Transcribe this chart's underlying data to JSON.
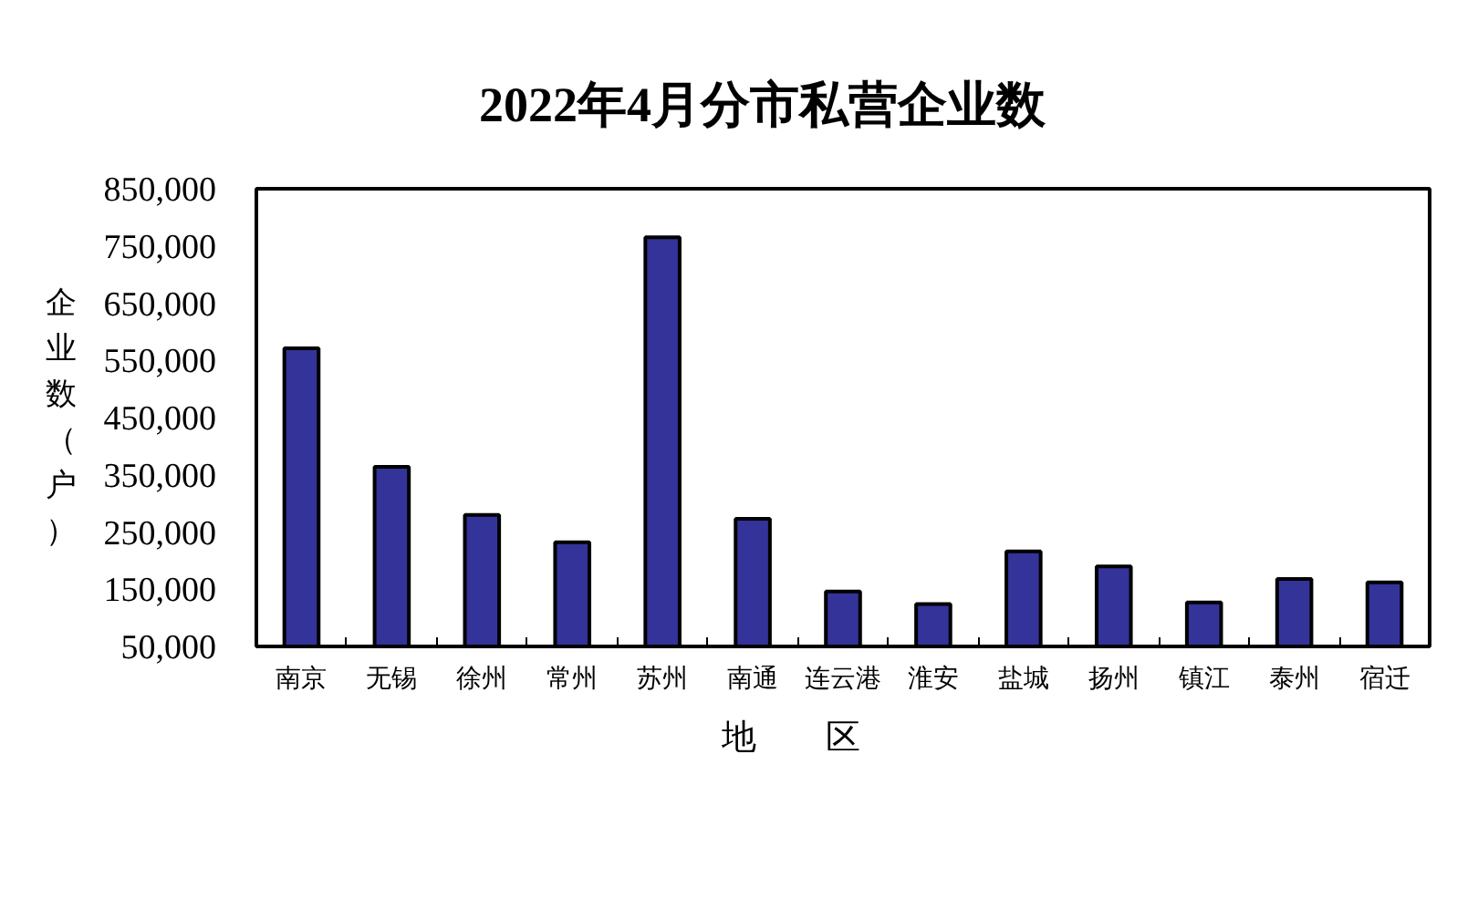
{
  "chart_data": {
    "type": "bar",
    "title": "2022年4月分市私营企业数",
    "xlabel": "地　　区",
    "ylabel": "企业数（户）",
    "categories": [
      "南京",
      "无锡",
      "徐州",
      "常州",
      "苏州",
      "南通",
      "连云港",
      "淮安",
      "盐城",
      "扬州",
      "镇江",
      "泰州",
      "宿迁"
    ],
    "values": [
      571000,
      364000,
      280000,
      232000,
      765000,
      273000,
      146000,
      124000,
      216000,
      190000,
      127000,
      168000,
      162000
    ],
    "color": "#333399",
    "ylim": [
      50000,
      850000
    ],
    "yticks": [
      {
        "value": 50000,
        "label": "50,000"
      },
      {
        "value": 150000,
        "label": "150,000"
      },
      {
        "value": 250000,
        "label": "250,000"
      },
      {
        "value": 350000,
        "label": "350,000"
      },
      {
        "value": 450000,
        "label": "450,000"
      },
      {
        "value": 550000,
        "label": "550,000"
      },
      {
        "value": 650000,
        "label": "650,000"
      },
      {
        "value": 750000,
        "label": "750,000"
      },
      {
        "value": 850000,
        "label": "850,000"
      }
    ],
    "grid": false
  }
}
